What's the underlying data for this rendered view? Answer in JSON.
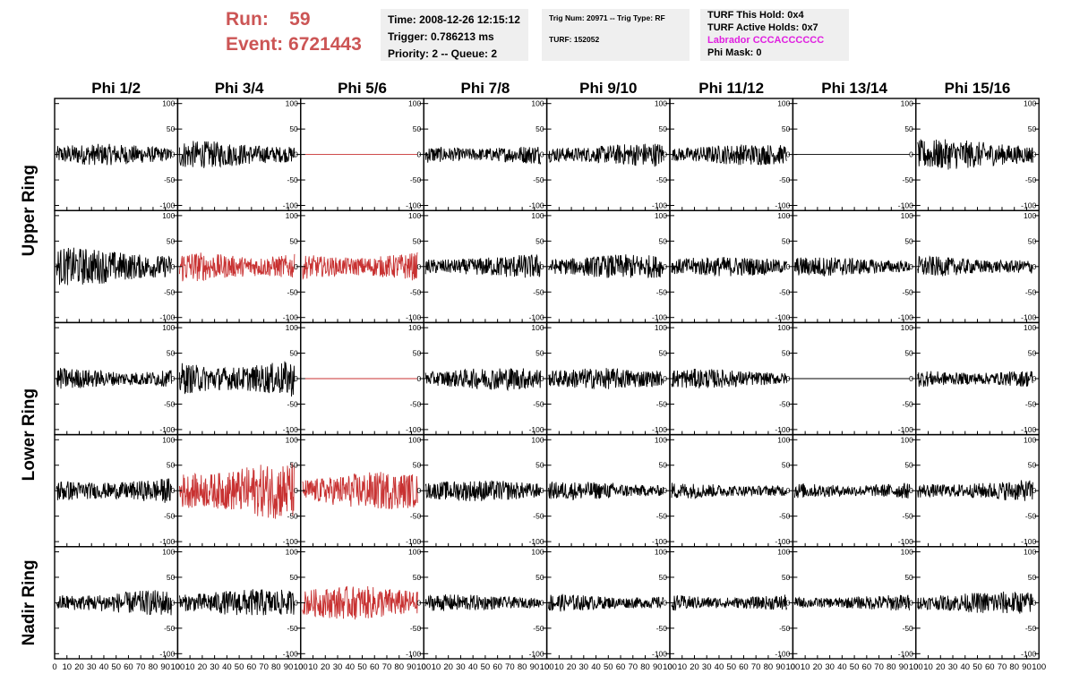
{
  "run": {
    "run_label": "Run:",
    "run_value": "59",
    "event_label": "Event:",
    "event_value": "6721443"
  },
  "info_time": {
    "time": "Time: 2008-12-26 12:15:12",
    "trigger": "Trigger: 0.786213 ms",
    "priority": "Priority: 2 -- Queue: 2"
  },
  "info_trig": {
    "trig": "Trig Num: 20971 -- Trig Type: RF",
    "turf": "TURF: 152052"
  },
  "info_turf": {
    "this_hold": "TURF This Hold: 0x4",
    "active_holds": "TURF Active Holds: 0x7",
    "labrador": "Labrador CCCACCCCCC",
    "phi_mask": "Phi Mask: 0"
  },
  "colors": {
    "normal": "#000000",
    "triggered": "#c83232",
    "run_text": "#cc5555",
    "labrador": "#e020e0"
  },
  "chart_data": {
    "type": "line",
    "columns": [
      "Phi 1/2",
      "Phi 3/4",
      "Phi 5/6",
      "Phi 7/8",
      "Phi 9/10",
      "Phi 11/12",
      "Phi 13/14",
      "Phi 15/16"
    ],
    "row_labels": [
      {
        "label": "Upper Ring",
        "rows": [
          0,
          1
        ]
      },
      {
        "label": "Lower Ring",
        "rows": [
          2,
          3
        ]
      },
      {
        "label": "Nadir Ring",
        "rows": [
          4
        ]
      }
    ],
    "xlim": [
      0,
      100
    ],
    "ylim": [
      -110,
      110
    ],
    "x_ticks": [
      0,
      10,
      20,
      30,
      40,
      50,
      60,
      70,
      80,
      90,
      100
    ],
    "y_ticks": [
      100,
      50,
      0,
      -50,
      -100
    ],
    "cells": [
      [
        {
          "c": "n",
          "a": 14
        },
        {
          "c": "n",
          "a": 18
        },
        {
          "c": "r",
          "a": 0
        },
        {
          "c": "n",
          "a": 14
        },
        {
          "c": "n",
          "a": 16
        },
        {
          "c": "n",
          "a": 14
        },
        {
          "c": "n",
          "a": 0
        },
        {
          "c": "n",
          "a": 20
        }
      ],
      [
        {
          "c": "n",
          "a": 25
        },
        {
          "c": "r",
          "a": 22
        },
        {
          "c": "r",
          "a": 20
        },
        {
          "c": "n",
          "a": 16
        },
        {
          "c": "n",
          "a": 16
        },
        {
          "c": "n",
          "a": 13
        },
        {
          "c": "n",
          "a": 13
        },
        {
          "c": "n",
          "a": 14
        }
      ],
      [
        {
          "c": "n",
          "a": 15
        },
        {
          "c": "n",
          "a": 26
        },
        {
          "c": "r",
          "a": 0
        },
        {
          "c": "n",
          "a": 15
        },
        {
          "c": "n",
          "a": 14
        },
        {
          "c": "n",
          "a": 13
        },
        {
          "c": "n",
          "a": 0
        },
        {
          "c": "n",
          "a": 13
        }
      ],
      [
        {
          "c": "n",
          "a": 18
        },
        {
          "c": "r",
          "a": 38
        },
        {
          "c": "r",
          "a": 25
        },
        {
          "c": "n",
          "a": 14
        },
        {
          "c": "n",
          "a": 12
        },
        {
          "c": "n",
          "a": 11
        },
        {
          "c": "n",
          "a": 12
        },
        {
          "c": "n",
          "a": 14
        }
      ],
      [
        {
          "c": "n",
          "a": 17
        },
        {
          "c": "n",
          "a": 18
        },
        {
          "c": "r",
          "a": 22
        },
        {
          "c": "n",
          "a": 11
        },
        {
          "c": "n",
          "a": 12
        },
        {
          "c": "n",
          "a": 12
        },
        {
          "c": "n",
          "a": 11
        },
        {
          "c": "n",
          "a": 15
        }
      ]
    ]
  }
}
